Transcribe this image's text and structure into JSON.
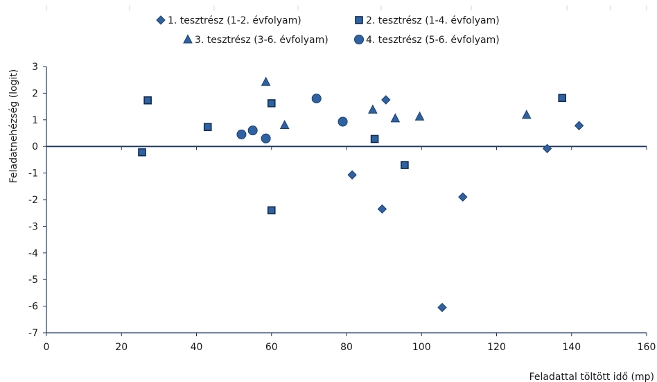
{
  "chart_data": {
    "type": "scatter",
    "title": "",
    "xlabel": "Feladattal töltött idő (mp)",
    "ylabel": "Feladatnehézség (logit)",
    "xlim": [
      0,
      160
    ],
    "ylim": [
      -7,
      3
    ],
    "x_ticks": [
      0,
      20,
      40,
      60,
      80,
      100,
      120,
      140,
      160
    ],
    "y_ticks": [
      3,
      2,
      1,
      0,
      -1,
      -2,
      -3,
      -4,
      -5,
      -6,
      -7
    ],
    "grid": false,
    "legend_position": "top",
    "colors": {
      "marker_fill": "#2e62a4",
      "marker_stroke": "#1b3f6e",
      "axis": "#1f3864"
    },
    "series": [
      {
        "name": "1. tesztrész (1-2. évfolyam)",
        "marker": "diamond",
        "points": [
          {
            "x": 81.5,
            "y": -1.07
          },
          {
            "x": 89.5,
            "y": -2.35
          },
          {
            "x": 90.5,
            "y": 1.75
          },
          {
            "x": 105.5,
            "y": -6.05
          },
          {
            "x": 111,
            "y": -1.9
          },
          {
            "x": 133.5,
            "y": -0.08
          },
          {
            "x": 142,
            "y": 0.78
          }
        ]
      },
      {
        "name": "2. tesztrész (1-4. évfolyam)",
        "marker": "square",
        "points": [
          {
            "x": 25.5,
            "y": -0.22
          },
          {
            "x": 27,
            "y": 1.73
          },
          {
            "x": 43,
            "y": 0.73
          },
          {
            "x": 60,
            "y": 1.62
          },
          {
            "x": 60,
            "y": -2.4
          },
          {
            "x": 87.5,
            "y": 0.28
          },
          {
            "x": 95.5,
            "y": -0.7
          },
          {
            "x": 137.5,
            "y": 1.82
          }
        ]
      },
      {
        "name": "3. tesztrész (3-6. évfolyam)",
        "marker": "triangle",
        "points": [
          {
            "x": 58.5,
            "y": 2.42
          },
          {
            "x": 63.5,
            "y": 0.8
          },
          {
            "x": 87,
            "y": 1.38
          },
          {
            "x": 93,
            "y": 1.05
          },
          {
            "x": 99.5,
            "y": 1.12
          },
          {
            "x": 128,
            "y": 1.18
          }
        ]
      },
      {
        "name": "4. tesztrész (5-6. évfolyam)",
        "marker": "circle",
        "points": [
          {
            "x": 52,
            "y": 0.45
          },
          {
            "x": 55,
            "y": 0.6
          },
          {
            "x": 58.5,
            "y": 0.3
          },
          {
            "x": 72,
            "y": 1.8
          },
          {
            "x": 79,
            "y": 0.93
          }
        ]
      }
    ]
  }
}
